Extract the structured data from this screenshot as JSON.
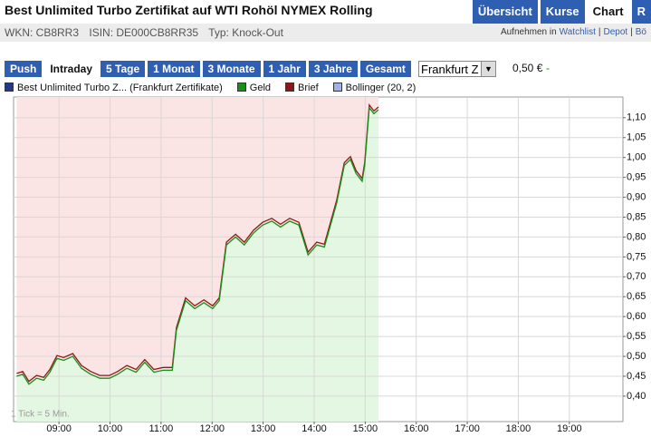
{
  "header": {
    "title": "Best Unlimited Turbo Zertifikat auf WTI Rohöl NYMEX Rolling",
    "tabs": [
      "Übersicht",
      "Kurse",
      "Chart",
      "R"
    ],
    "active_tab": 2,
    "wkn": "WKN: CB8RR3",
    "isin": "ISIN: DE000CB8RR35",
    "typ": "Typ: Knock-Out",
    "links": [
      "Aufnehmen in",
      "Watchlist",
      "|",
      "Depot",
      "|",
      "Bö"
    ]
  },
  "toolbar": {
    "ranges": [
      "Push",
      "Intraday",
      "5 Tage",
      "1 Monat",
      "3 Monate",
      "1 Jahr",
      "3 Jahre",
      "Gesamt"
    ],
    "active_range": 1,
    "exchange": "Frankfurt Z",
    "price": "0,50 €",
    "change": "-"
  },
  "chart_data": {
    "type": "line",
    "legend_items": [
      {
        "label": "Best Unlimited Turbo Z... (Frankfurt Zertifikate)",
        "color": "#1f3a8a"
      },
      {
        "label": "Bollinger (20, 2)",
        "color": "#9db4e8"
      }
    ],
    "note": "1 Tick = 5 Min.",
    "x": [
      8.17,
      8.29,
      8.41,
      8.56,
      8.7,
      8.82,
      8.96,
      9.09,
      9.27,
      9.44,
      9.62,
      9.8,
      9.99,
      10.15,
      10.33,
      10.51,
      10.68,
      10.86,
      11.04,
      11.22,
      11.3,
      11.48,
      11.66,
      11.84,
      12.01,
      12.14,
      12.28,
      12.46,
      12.63,
      12.81,
      12.99,
      13.17,
      13.34,
      13.52,
      13.7,
      13.88,
      14.05,
      14.2,
      14.32,
      14.44,
      14.59,
      14.71,
      14.82,
      14.94,
      14.99,
      15.08,
      15.17,
      15.26
    ],
    "series": [
      {
        "name": "Geld",
        "color": "#1a8f1a",
        "values": [
          0.45,
          0.455,
          0.43,
          0.445,
          0.44,
          0.46,
          0.495,
          0.49,
          0.5,
          0.47,
          0.455,
          0.445,
          0.445,
          0.455,
          0.47,
          0.46,
          0.485,
          0.46,
          0.465,
          0.465,
          0.565,
          0.64,
          0.62,
          0.635,
          0.62,
          0.64,
          0.78,
          0.8,
          0.78,
          0.81,
          0.83,
          0.84,
          0.825,
          0.84,
          0.83,
          0.755,
          0.78,
          0.775,
          0.83,
          0.885,
          0.98,
          0.995,
          0.96,
          0.94,
          0.98,
          1.125,
          1.11,
          1.12
        ]
      },
      {
        "name": "Brief",
        "color": "#8b1a1a",
        "values": [
          0.457,
          0.462,
          0.437,
          0.452,
          0.447,
          0.467,
          0.502,
          0.497,
          0.507,
          0.477,
          0.462,
          0.452,
          0.452,
          0.462,
          0.477,
          0.467,
          0.492,
          0.467,
          0.472,
          0.472,
          0.572,
          0.647,
          0.627,
          0.642,
          0.627,
          0.647,
          0.787,
          0.807,
          0.787,
          0.817,
          0.837,
          0.847,
          0.832,
          0.847,
          0.837,
          0.762,
          0.787,
          0.782,
          0.837,
          0.892,
          0.987,
          1.002,
          0.967,
          0.947,
          0.987,
          1.132,
          1.117,
          1.127
        ]
      }
    ],
    "xlim": [
      8.11,
      20.05
    ],
    "xticks": [
      {
        "value": 9,
        "label": "09:00"
      },
      {
        "value": 10,
        "label": "10:00"
      },
      {
        "value": 11,
        "label": "11:00"
      },
      {
        "value": 12,
        "label": "12:00"
      },
      {
        "value": 13,
        "label": "13:00"
      },
      {
        "value": 14,
        "label": "14:00"
      },
      {
        "value": 15,
        "label": "15:00"
      },
      {
        "value": 16,
        "label": "16:00"
      },
      {
        "value": 17,
        "label": "17:00"
      },
      {
        "value": 18,
        "label": "18:00"
      },
      {
        "value": 19,
        "label": "19:00"
      }
    ],
    "ylim": [
      0.336,
      1.152
    ],
    "yticks": [
      {
        "value": 0.4,
        "label": "0,40"
      },
      {
        "value": 0.45,
        "label": "0,45"
      },
      {
        "value": 0.5,
        "label": "0,50"
      },
      {
        "value": 0.55,
        "label": "0,55"
      },
      {
        "value": 0.6,
        "label": "0,60"
      },
      {
        "value": 0.65,
        "label": "0,65"
      },
      {
        "value": 0.7,
        "label": "0,70"
      },
      {
        "value": 0.75,
        "label": "0,75"
      },
      {
        "value": 0.8,
        "label": "0,80"
      },
      {
        "value": 0.85,
        "label": "0,85"
      },
      {
        "value": 0.9,
        "label": "0,90"
      },
      {
        "value": 0.95,
        "label": "0,95"
      },
      {
        "value": 1.0,
        "label": "1,00"
      },
      {
        "value": 1.05,
        "label": "1,05"
      },
      {
        "value": 1.1,
        "label": "1,10"
      }
    ],
    "grid": true,
    "upper_fill": "#fbe4e4",
    "lower_fill": "#e4f7e2"
  }
}
